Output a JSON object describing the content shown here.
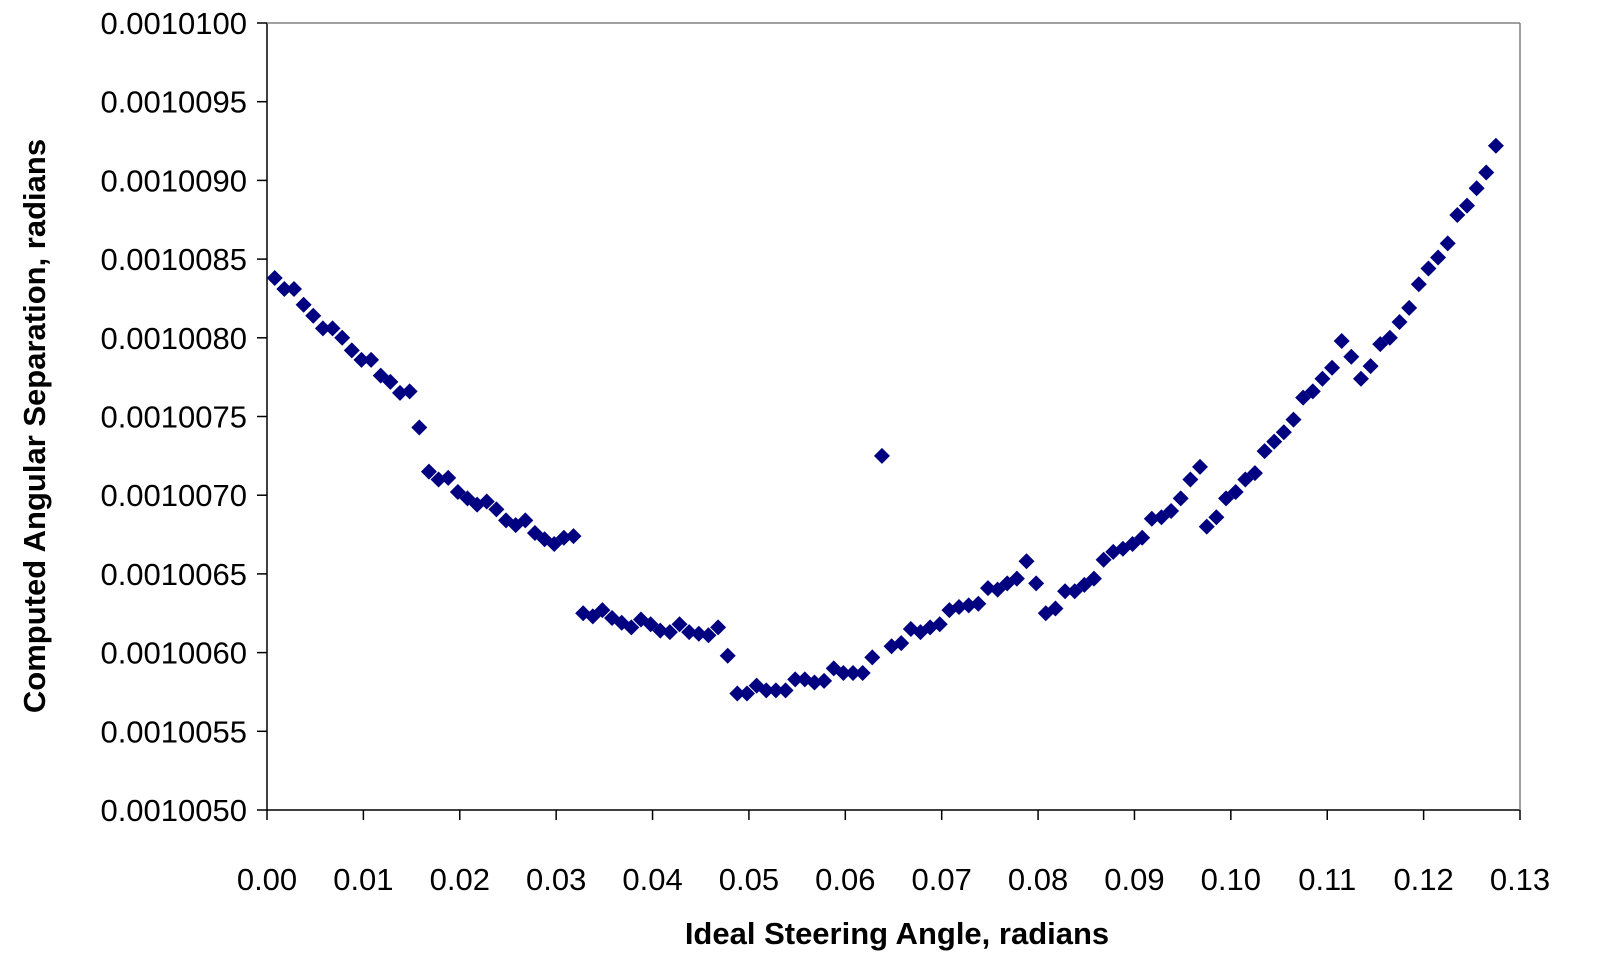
{
  "chart_data": {
    "type": "scatter",
    "xlabel": "Ideal Steering Angle, radians",
    "ylabel": "Computed Angular Separation, radians",
    "xlim": [
      0.0,
      0.13
    ],
    "ylim": [
      0.001005,
      0.00101
    ],
    "x_ticks": [
      0.0,
      0.01,
      0.02,
      0.03,
      0.04,
      0.05,
      0.06,
      0.07,
      0.08,
      0.09,
      0.1,
      0.11,
      0.12,
      0.13
    ],
    "x_tick_labels": [
      "0.00",
      "0.01",
      "0.02",
      "0.03",
      "0.04",
      "0.05",
      "0.06",
      "0.07",
      "0.08",
      "0.09",
      "0.10",
      "0.11",
      "0.12",
      "0.13"
    ],
    "y_ticks": [
      0.001005,
      0.0010055,
      0.001006,
      0.0010065,
      0.001007,
      0.0010075,
      0.001008,
      0.0010085,
      0.001009,
      0.0010095,
      0.00101
    ],
    "y_tick_labels": [
      "0.0010050",
      "0.0010055",
      "0.0010060",
      "0.0010065",
      "0.0010070",
      "0.0010075",
      "0.0010080",
      "0.0010085",
      "0.0010090",
      "0.0010095",
      "0.0010100"
    ],
    "grid": false,
    "legend": "none",
    "marker": "diamond",
    "marker_color": "#000080",
    "series": [
      {
        "points": [
          [
            0.0008,
            0.00100838
          ],
          [
            0.0018,
            0.00100831
          ],
          [
            0.0028,
            0.00100831
          ],
          [
            0.0038,
            0.00100821
          ],
          [
            0.0048,
            0.00100814
          ],
          [
            0.0058,
            0.00100806
          ],
          [
            0.0068,
            0.00100806
          ],
          [
            0.0078,
            0.001008
          ],
          [
            0.0088,
            0.00100792
          ],
          [
            0.0098,
            0.00100786
          ],
          [
            0.0108,
            0.00100786
          ],
          [
            0.0118,
            0.00100776
          ],
          [
            0.0128,
            0.00100772
          ],
          [
            0.0138,
            0.00100765
          ],
          [
            0.0148,
            0.00100766
          ],
          [
            0.0158,
            0.00100743
          ],
          [
            0.0168,
            0.00100715
          ],
          [
            0.0178,
            0.0010071
          ],
          [
            0.0188,
            0.00100711
          ],
          [
            0.0198,
            0.00100702
          ],
          [
            0.0208,
            0.00100698
          ],
          [
            0.0218,
            0.00100694
          ],
          [
            0.0228,
            0.00100696
          ],
          [
            0.0238,
            0.00100691
          ],
          [
            0.0248,
            0.00100684
          ],
          [
            0.0258,
            0.00100681
          ],
          [
            0.0268,
            0.00100684
          ],
          [
            0.0278,
            0.00100676
          ],
          [
            0.0288,
            0.00100672
          ],
          [
            0.0298,
            0.00100669
          ],
          [
            0.0308,
            0.00100673
          ],
          [
            0.0318,
            0.00100674
          ],
          [
            0.0328,
            0.00100625
          ],
          [
            0.0338,
            0.00100623
          ],
          [
            0.0348,
            0.00100627
          ],
          [
            0.0358,
            0.00100622
          ],
          [
            0.0368,
            0.00100619
          ],
          [
            0.0378,
            0.00100616
          ],
          [
            0.0388,
            0.00100621
          ],
          [
            0.0398,
            0.00100618
          ],
          [
            0.0408,
            0.00100614
          ],
          [
            0.0418,
            0.00100613
          ],
          [
            0.0428,
            0.00100618
          ],
          [
            0.0438,
            0.00100613
          ],
          [
            0.0448,
            0.00100612
          ],
          [
            0.0458,
            0.00100611
          ],
          [
            0.0468,
            0.00100616
          ],
          [
            0.0478,
            0.00100598
          ],
          [
            0.0488,
            0.00100574
          ],
          [
            0.0498,
            0.00100574
          ],
          [
            0.0508,
            0.00100579
          ],
          [
            0.0518,
            0.00100576
          ],
          [
            0.0528,
            0.00100576
          ],
          [
            0.0538,
            0.00100576
          ],
          [
            0.0548,
            0.00100583
          ],
          [
            0.0558,
            0.00100583
          ],
          [
            0.0568,
            0.00100581
          ],
          [
            0.0578,
            0.00100582
          ],
          [
            0.0588,
            0.0010059
          ],
          [
            0.0598,
            0.00100587
          ],
          [
            0.0608,
            0.00100587
          ],
          [
            0.0618,
            0.00100587
          ],
          [
            0.0628,
            0.00100597
          ],
          [
            0.0638,
            0.00100725
          ],
          [
            0.0648,
            0.00100604
          ],
          [
            0.0658,
            0.00100606
          ],
          [
            0.0668,
            0.00100615
          ],
          [
            0.0678,
            0.00100613
          ],
          [
            0.0688,
            0.00100616
          ],
          [
            0.0698,
            0.00100618
          ],
          [
            0.0708,
            0.00100627
          ],
          [
            0.0718,
            0.00100629
          ],
          [
            0.0728,
            0.0010063
          ],
          [
            0.0738,
            0.00100631
          ],
          [
            0.0748,
            0.00100641
          ],
          [
            0.0758,
            0.0010064
          ],
          [
            0.0768,
            0.00100644
          ],
          [
            0.0778,
            0.00100647
          ],
          [
            0.0788,
            0.00100658
          ],
          [
            0.0798,
            0.00100644
          ],
          [
            0.0808,
            0.00100625
          ],
          [
            0.0818,
            0.00100628
          ],
          [
            0.0828,
            0.00100639
          ],
          [
            0.0838,
            0.00100639
          ],
          [
            0.0848,
            0.00100643
          ],
          [
            0.0858,
            0.00100647
          ],
          [
            0.0868,
            0.00100659
          ],
          [
            0.0878,
            0.00100664
          ],
          [
            0.0888,
            0.00100666
          ],
          [
            0.0898,
            0.00100669
          ],
          [
            0.0908,
            0.00100673
          ],
          [
            0.0918,
            0.00100685
          ],
          [
            0.0928,
            0.00100686
          ],
          [
            0.0938,
            0.0010069
          ],
          [
            0.0948,
            0.00100698
          ],
          [
            0.0958,
            0.0010071
          ],
          [
            0.0968,
            0.00100718
          ],
          [
            0.0975,
            0.0010068
          ],
          [
            0.0985,
            0.00100686
          ],
          [
            0.0995,
            0.00100698
          ],
          [
            0.1005,
            0.00100702
          ],
          [
            0.1015,
            0.0010071
          ],
          [
            0.1025,
            0.00100714
          ],
          [
            0.1035,
            0.00100728
          ],
          [
            0.1045,
            0.00100734
          ],
          [
            0.1055,
            0.0010074
          ],
          [
            0.1065,
            0.00100748
          ],
          [
            0.1075,
            0.00100762
          ],
          [
            0.1085,
            0.00100766
          ],
          [
            0.1095,
            0.00100774
          ],
          [
            0.1105,
            0.00100781
          ],
          [
            0.1115,
            0.00100798
          ],
          [
            0.1125,
            0.00100788
          ],
          [
            0.1135,
            0.00100774
          ],
          [
            0.1145,
            0.00100782
          ],
          [
            0.1155,
            0.00100796
          ],
          [
            0.1165,
            0.001008
          ],
          [
            0.1175,
            0.0010081
          ],
          [
            0.1185,
            0.00100819
          ],
          [
            0.1195,
            0.00100834
          ],
          [
            0.1205,
            0.00100844
          ],
          [
            0.1215,
            0.00100851
          ],
          [
            0.1225,
            0.0010086
          ],
          [
            0.1235,
            0.00100878
          ],
          [
            0.1245,
            0.00100884
          ],
          [
            0.1255,
            0.00100895
          ],
          [
            0.1265,
            0.00100905
          ],
          [
            0.1275,
            0.00100922
          ]
        ]
      }
    ]
  }
}
